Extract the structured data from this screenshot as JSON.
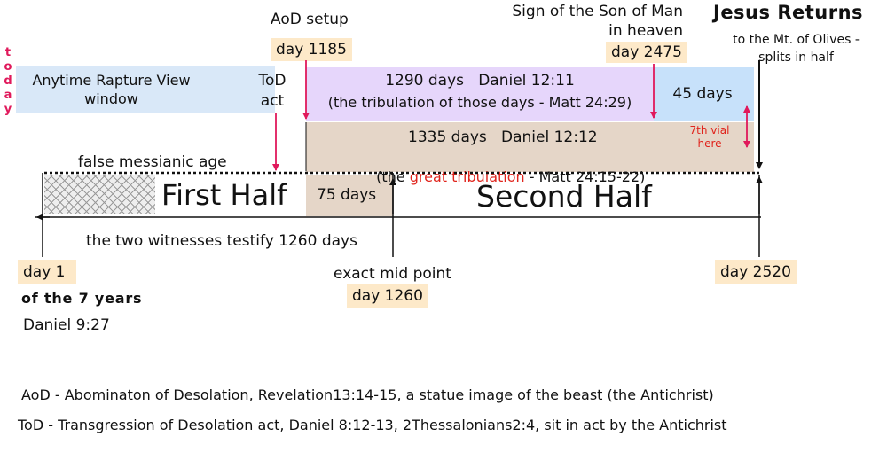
{
  "labels": {
    "today": [
      "t",
      "o",
      "d",
      "a",
      "y"
    ],
    "rapture_window": [
      "Anytime Rapture View",
      "window"
    ],
    "tod_act": [
      "ToD",
      "act"
    ],
    "aod_setup": "AoD setup",
    "day_1185": "day 1185",
    "sign_son_of_man": [
      "Sign of the Son of Man",
      "in heaven"
    ],
    "day_2475": "day 2475",
    "jesus_returns": "Jesus Returns",
    "mt_olives": [
      "to the Mt. of Olives -",
      "splits in half"
    ],
    "days_1290_title": "1290 days   Daniel 12:11",
    "days_1290_sub": "(the tribulation of those days - Matt 24:29)",
    "days_45": "45 days",
    "vial_7": [
      "7th vial",
      "here"
    ],
    "days_1335_title": "1335 days   Daniel 12:12",
    "days_1335_sub_pre": "(the ",
    "days_1335_sub_highlight": "great tribulation",
    "days_1335_sub_post": " - Matt 24:15-22)",
    "false_messianic": "false messianic age",
    "first_half": "First Half",
    "days_75": "75 days",
    "second_half": "Second Half",
    "two_witnesses": "the two witnesses testify 1260 days",
    "day_1": "day 1",
    "of_7_years": "of the 7 years",
    "daniel_927": "Daniel 9:27",
    "mid_point": "exact mid point",
    "day_1260": "day 1260",
    "day_2520": "day 2520"
  },
  "footnotes": {
    "aod": "AoD - Abominaton of Desolation, Revelation13:14-15, a statue image of the beast (the Antichrist)",
    "tod": "ToD - Transgression of Desolation act, Daniel 8:12-13, 2Thessalonians2:4, sit in act by the Antichrist"
  },
  "colors": {
    "rapture_band": "#d9e8f8",
    "band_1290": "#e6d6fb",
    "band_45": "#c7e1fa",
    "band_1335": "#e5d6c8",
    "label_bg": "#fde9c9",
    "accent_red": "#e0195b",
    "highlight_red": "#e0241c"
  }
}
